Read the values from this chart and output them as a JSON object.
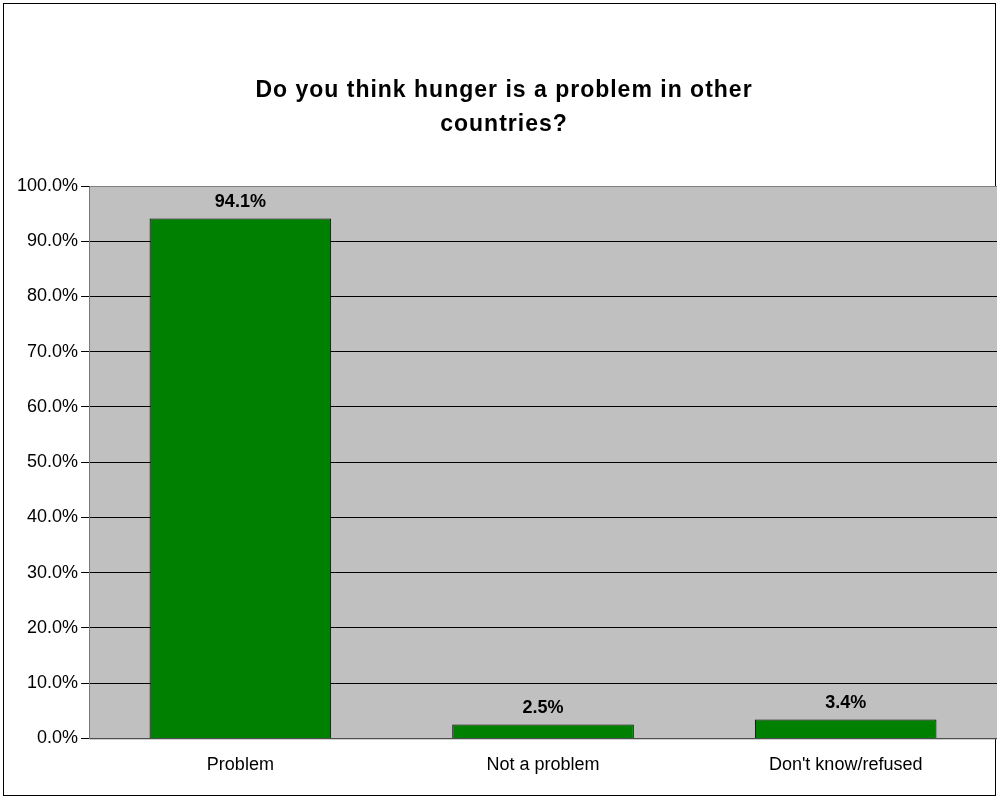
{
  "chart_data": {
    "type": "bar",
    "title": "Do you think hunger is a problem in other countries?",
    "categories": [
      "Problem",
      "Not a problem",
      "Don't know/refused"
    ],
    "values": [
      94.1,
      2.5,
      3.4
    ],
    "color": "#008000",
    "value_labels": [
      "94.1%",
      "2.5%",
      "3.4%"
    ],
    "ylim": [
      0,
      100
    ],
    "yticks": [
      {
        "value": 0,
        "label": "0.0%"
      },
      {
        "value": 10,
        "label": "10.0%"
      },
      {
        "value": 20,
        "label": "20.0%"
      },
      {
        "value": 30,
        "label": "30.0%"
      },
      {
        "value": 40,
        "label": "40.0%"
      },
      {
        "value": 50,
        "label": "50.0%"
      },
      {
        "value": 60,
        "label": "60.0%"
      },
      {
        "value": 70,
        "label": "70.0%"
      },
      {
        "value": 80,
        "label": "80.0%"
      },
      {
        "value": 90,
        "label": "90.0%"
      },
      {
        "value": 100,
        "label": "100.0%"
      }
    ],
    "grid": "y",
    "legend": false
  }
}
